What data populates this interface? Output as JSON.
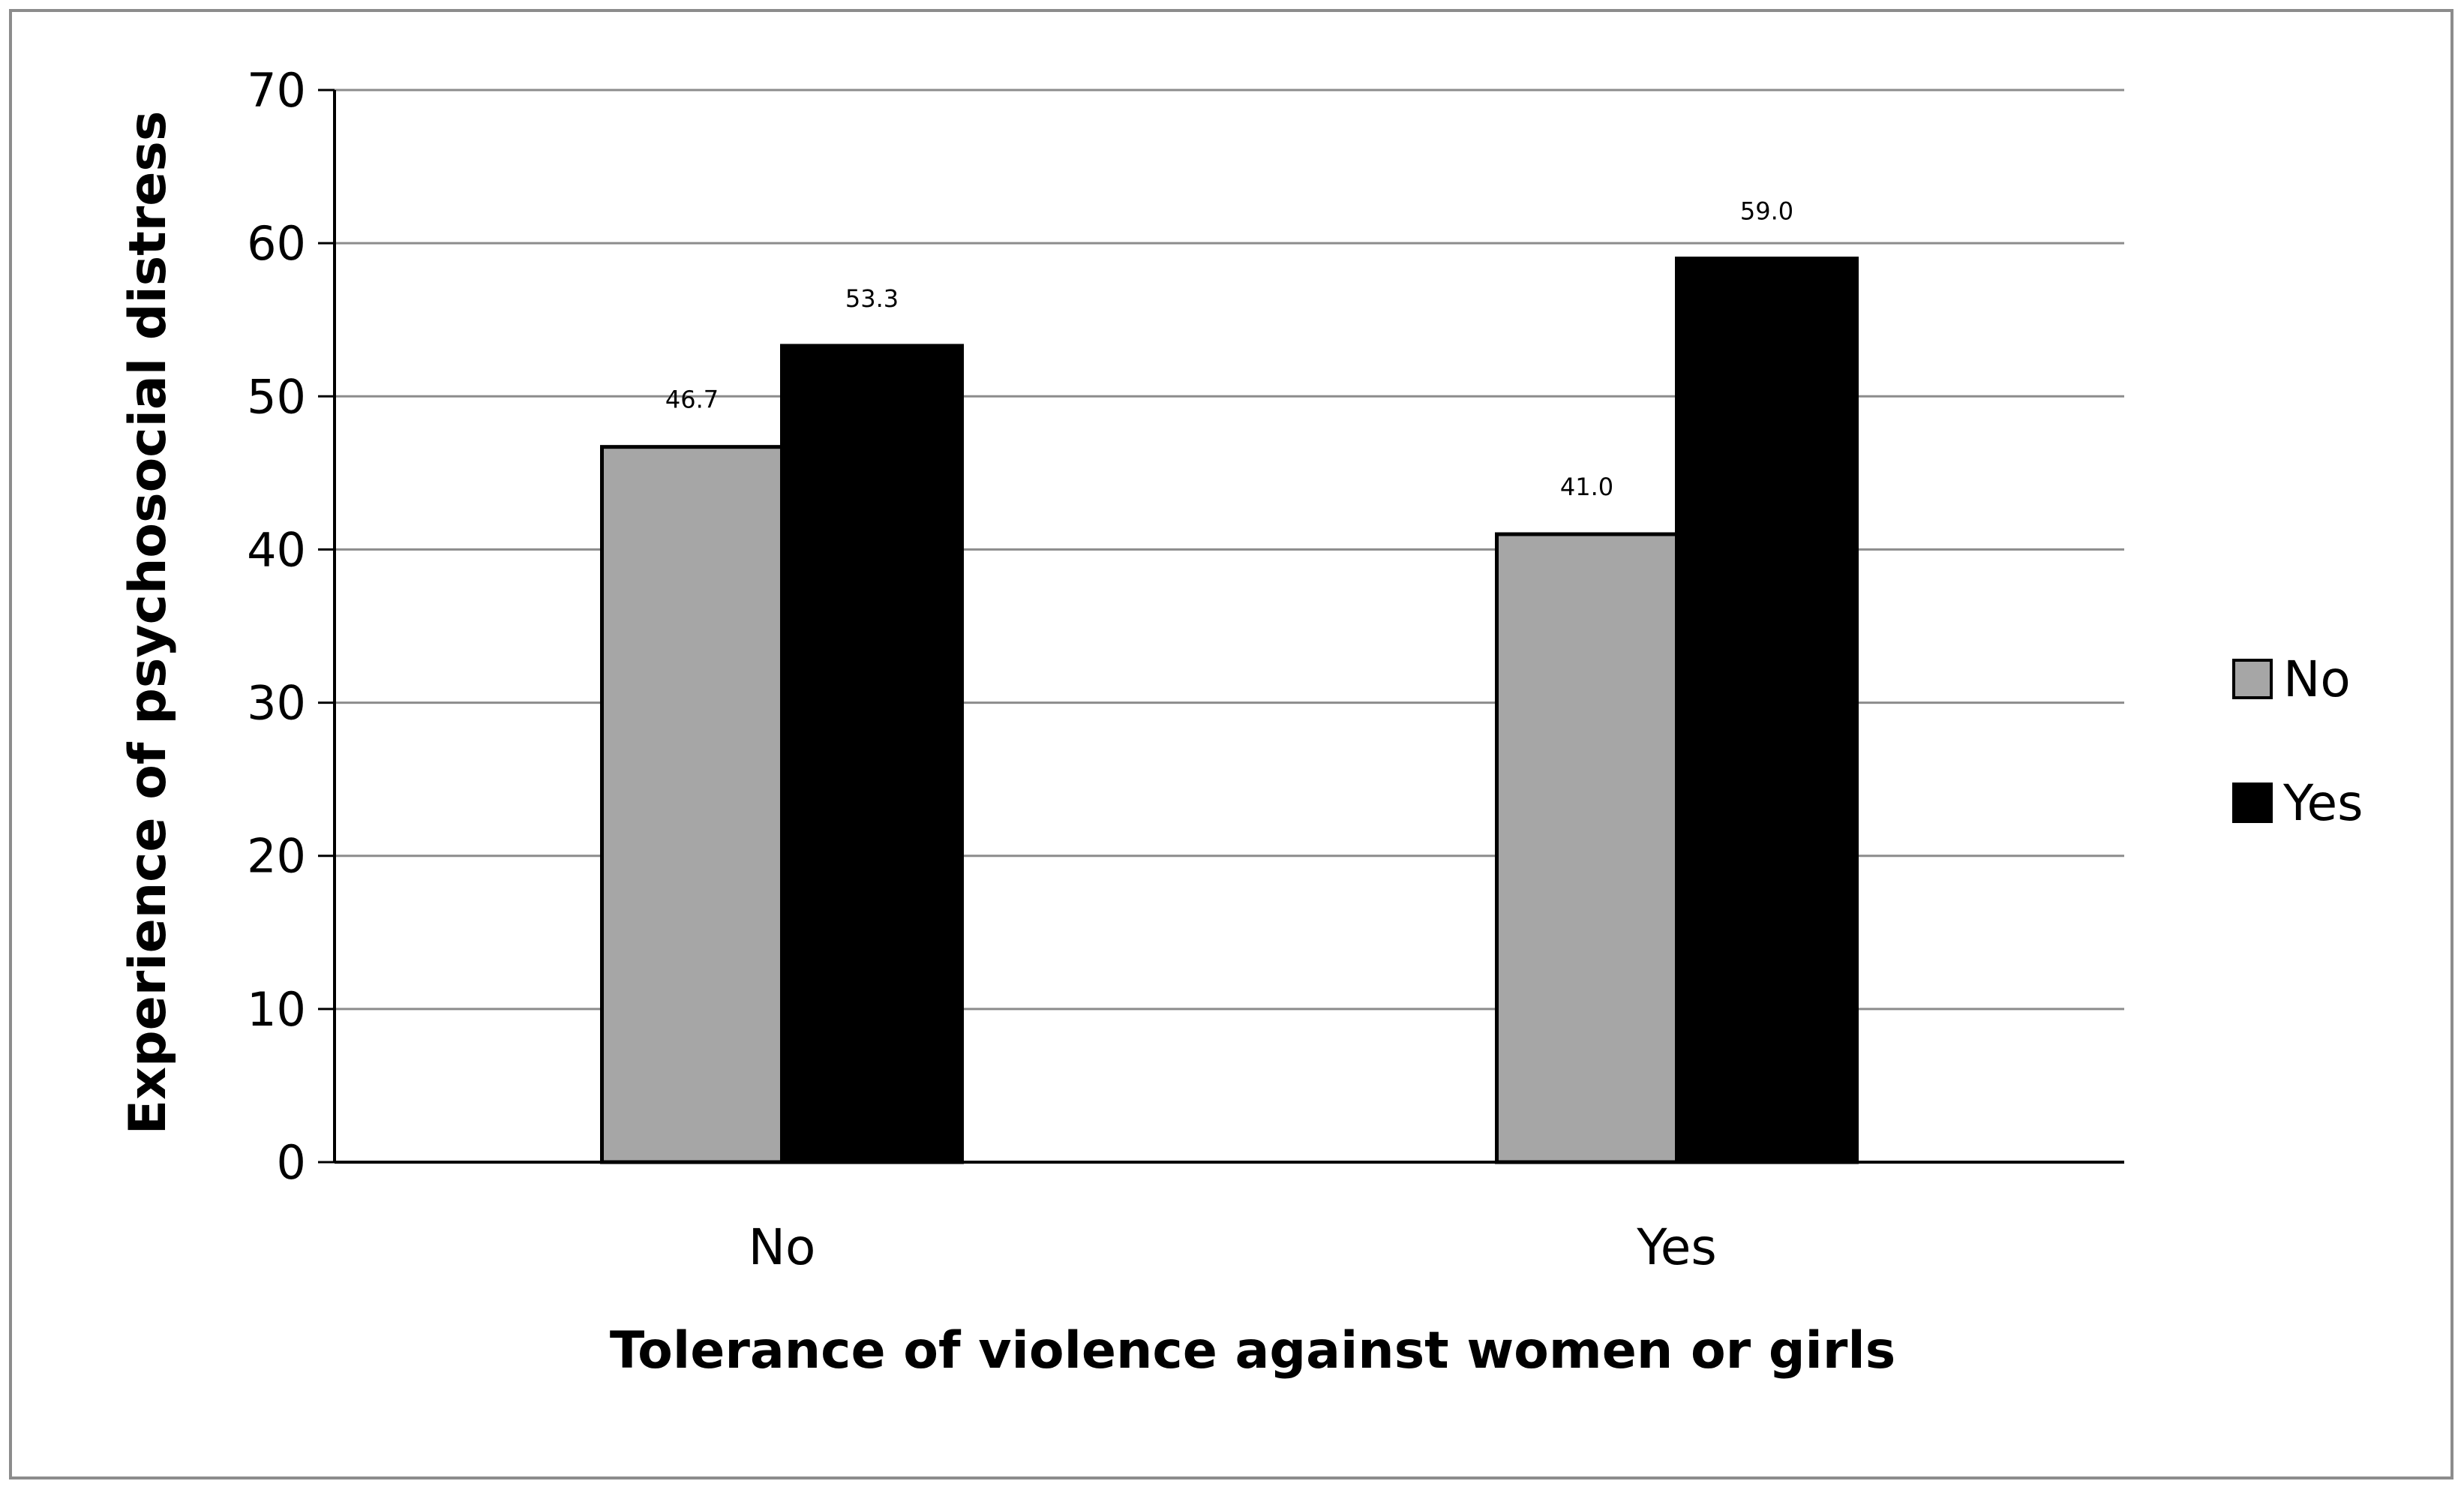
{
  "chart_data": {
    "type": "bar",
    "categories": [
      "No",
      "Yes"
    ],
    "series": [
      {
        "name": "No",
        "values": [
          46.7,
          41.0
        ],
        "labels": [
          "46.7",
          "41.0"
        ],
        "color": "#a6a6a6"
      },
      {
        "name": "Yes",
        "values": [
          53.3,
          59.0
        ],
        "labels": [
          "53.3",
          "59.0"
        ],
        "color": "#000000"
      }
    ],
    "title": "",
    "xlabel": "Tolerance of violence against women or girls",
    "ylabel": "Experience of psychosocial distress",
    "ylim": [
      0,
      70
    ],
    "yticks": [
      0,
      10,
      20,
      30,
      40,
      50,
      60,
      70
    ],
    "grid": true,
    "legend": "right"
  }
}
